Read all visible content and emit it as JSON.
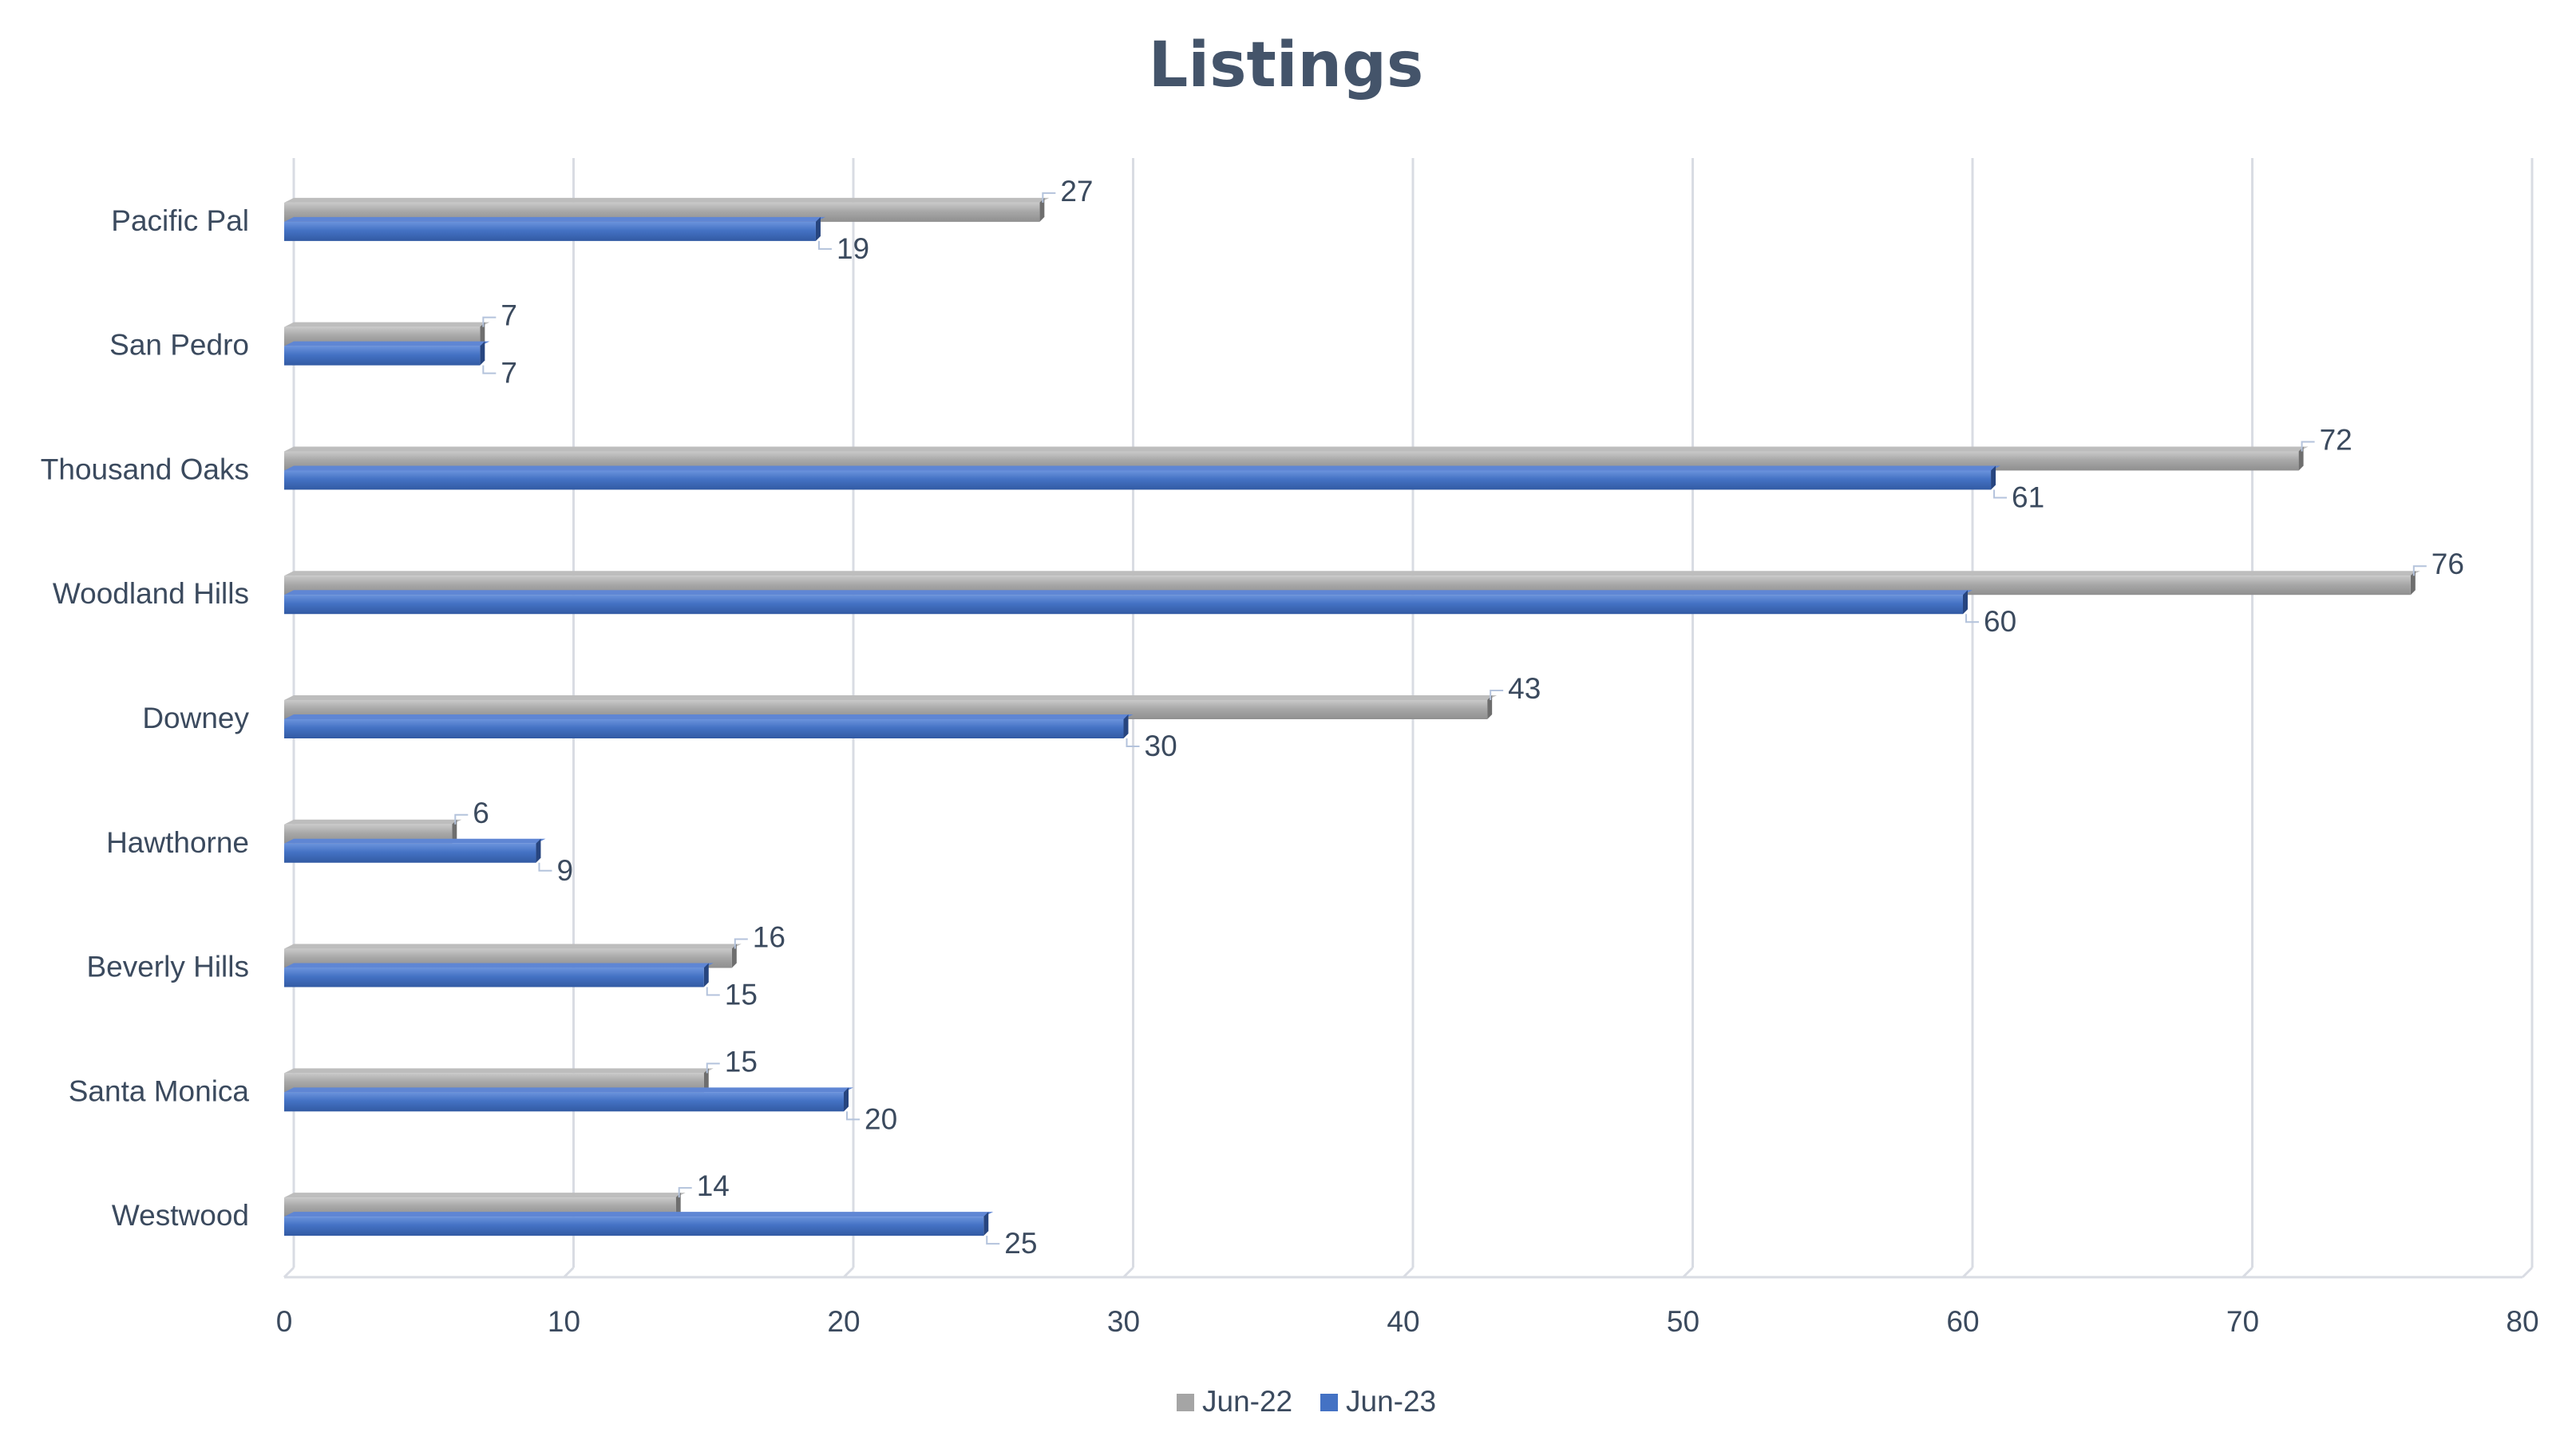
{
  "chart_data": {
    "type": "bar",
    "orientation": "horizontal",
    "title": "Listings",
    "categories": [
      "Pacific Pal",
      "San Pedro",
      "Thousand Oaks",
      "Woodland Hills",
      "Downey",
      "Hawthorne",
      "Beverly Hills",
      "Santa Monica",
      "Westwood"
    ],
    "series": [
      {
        "name": "Jun-22",
        "values": [
          27,
          7,
          72,
          76,
          43,
          6,
          16,
          15,
          14
        ],
        "color": "#a5a5a5"
      },
      {
        "name": "Jun-23",
        "values": [
          19,
          7,
          61,
          60,
          30,
          9,
          15,
          20,
          25
        ],
        "color": "#4472c4"
      }
    ],
    "xlim": [
      0,
      80
    ],
    "ticks": [
      0,
      10,
      20,
      30,
      40,
      50,
      60,
      70,
      80
    ],
    "grid": true,
    "legend_position": "bottom",
    "data_labels": true
  }
}
